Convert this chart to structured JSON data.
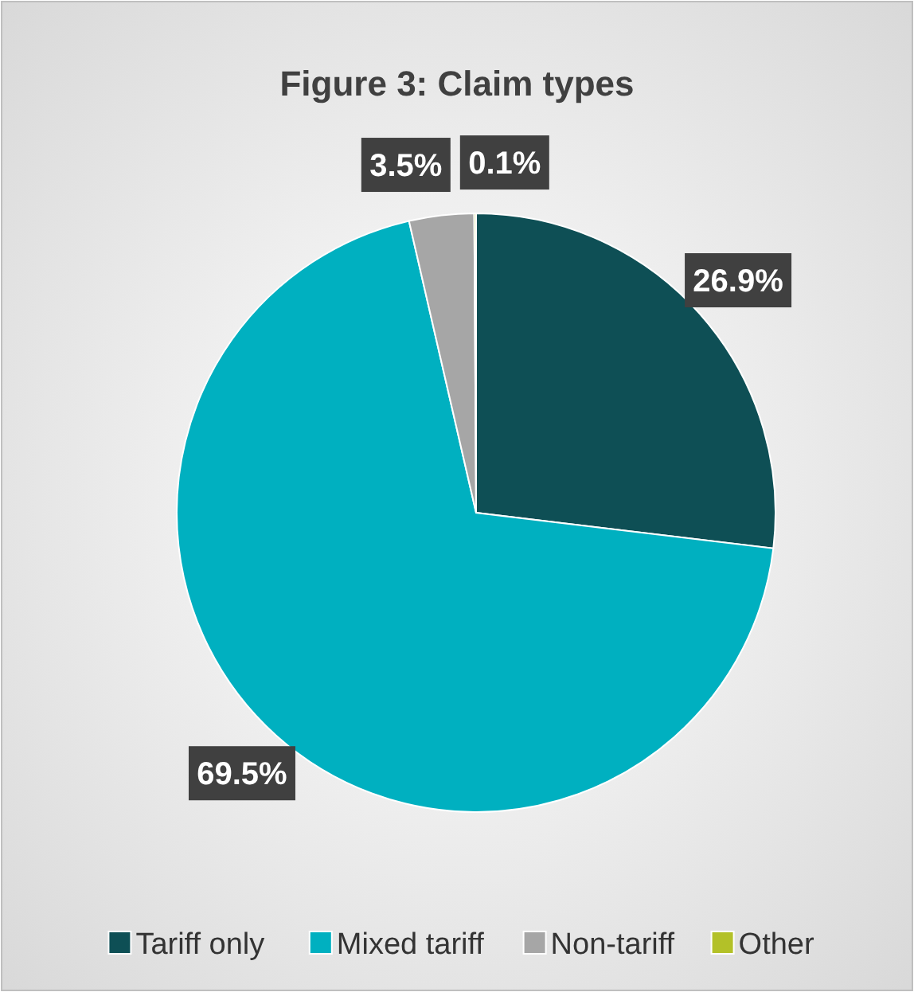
{
  "chart_data": {
    "type": "pie",
    "title": "Figure 3: Claim types",
    "categories": [
      "Tariff only",
      "Mixed tariff",
      "Non-tariff",
      "Other"
    ],
    "values": [
      26.9,
      69.5,
      3.5,
      0.1
    ],
    "value_labels": [
      "26.9%",
      "69.5%",
      "3.5%",
      "0.1%"
    ],
    "colors": [
      "#0e4f55",
      "#00b0c0",
      "#a6a6a6",
      "#b3c128"
    ],
    "legend": "bottom"
  }
}
